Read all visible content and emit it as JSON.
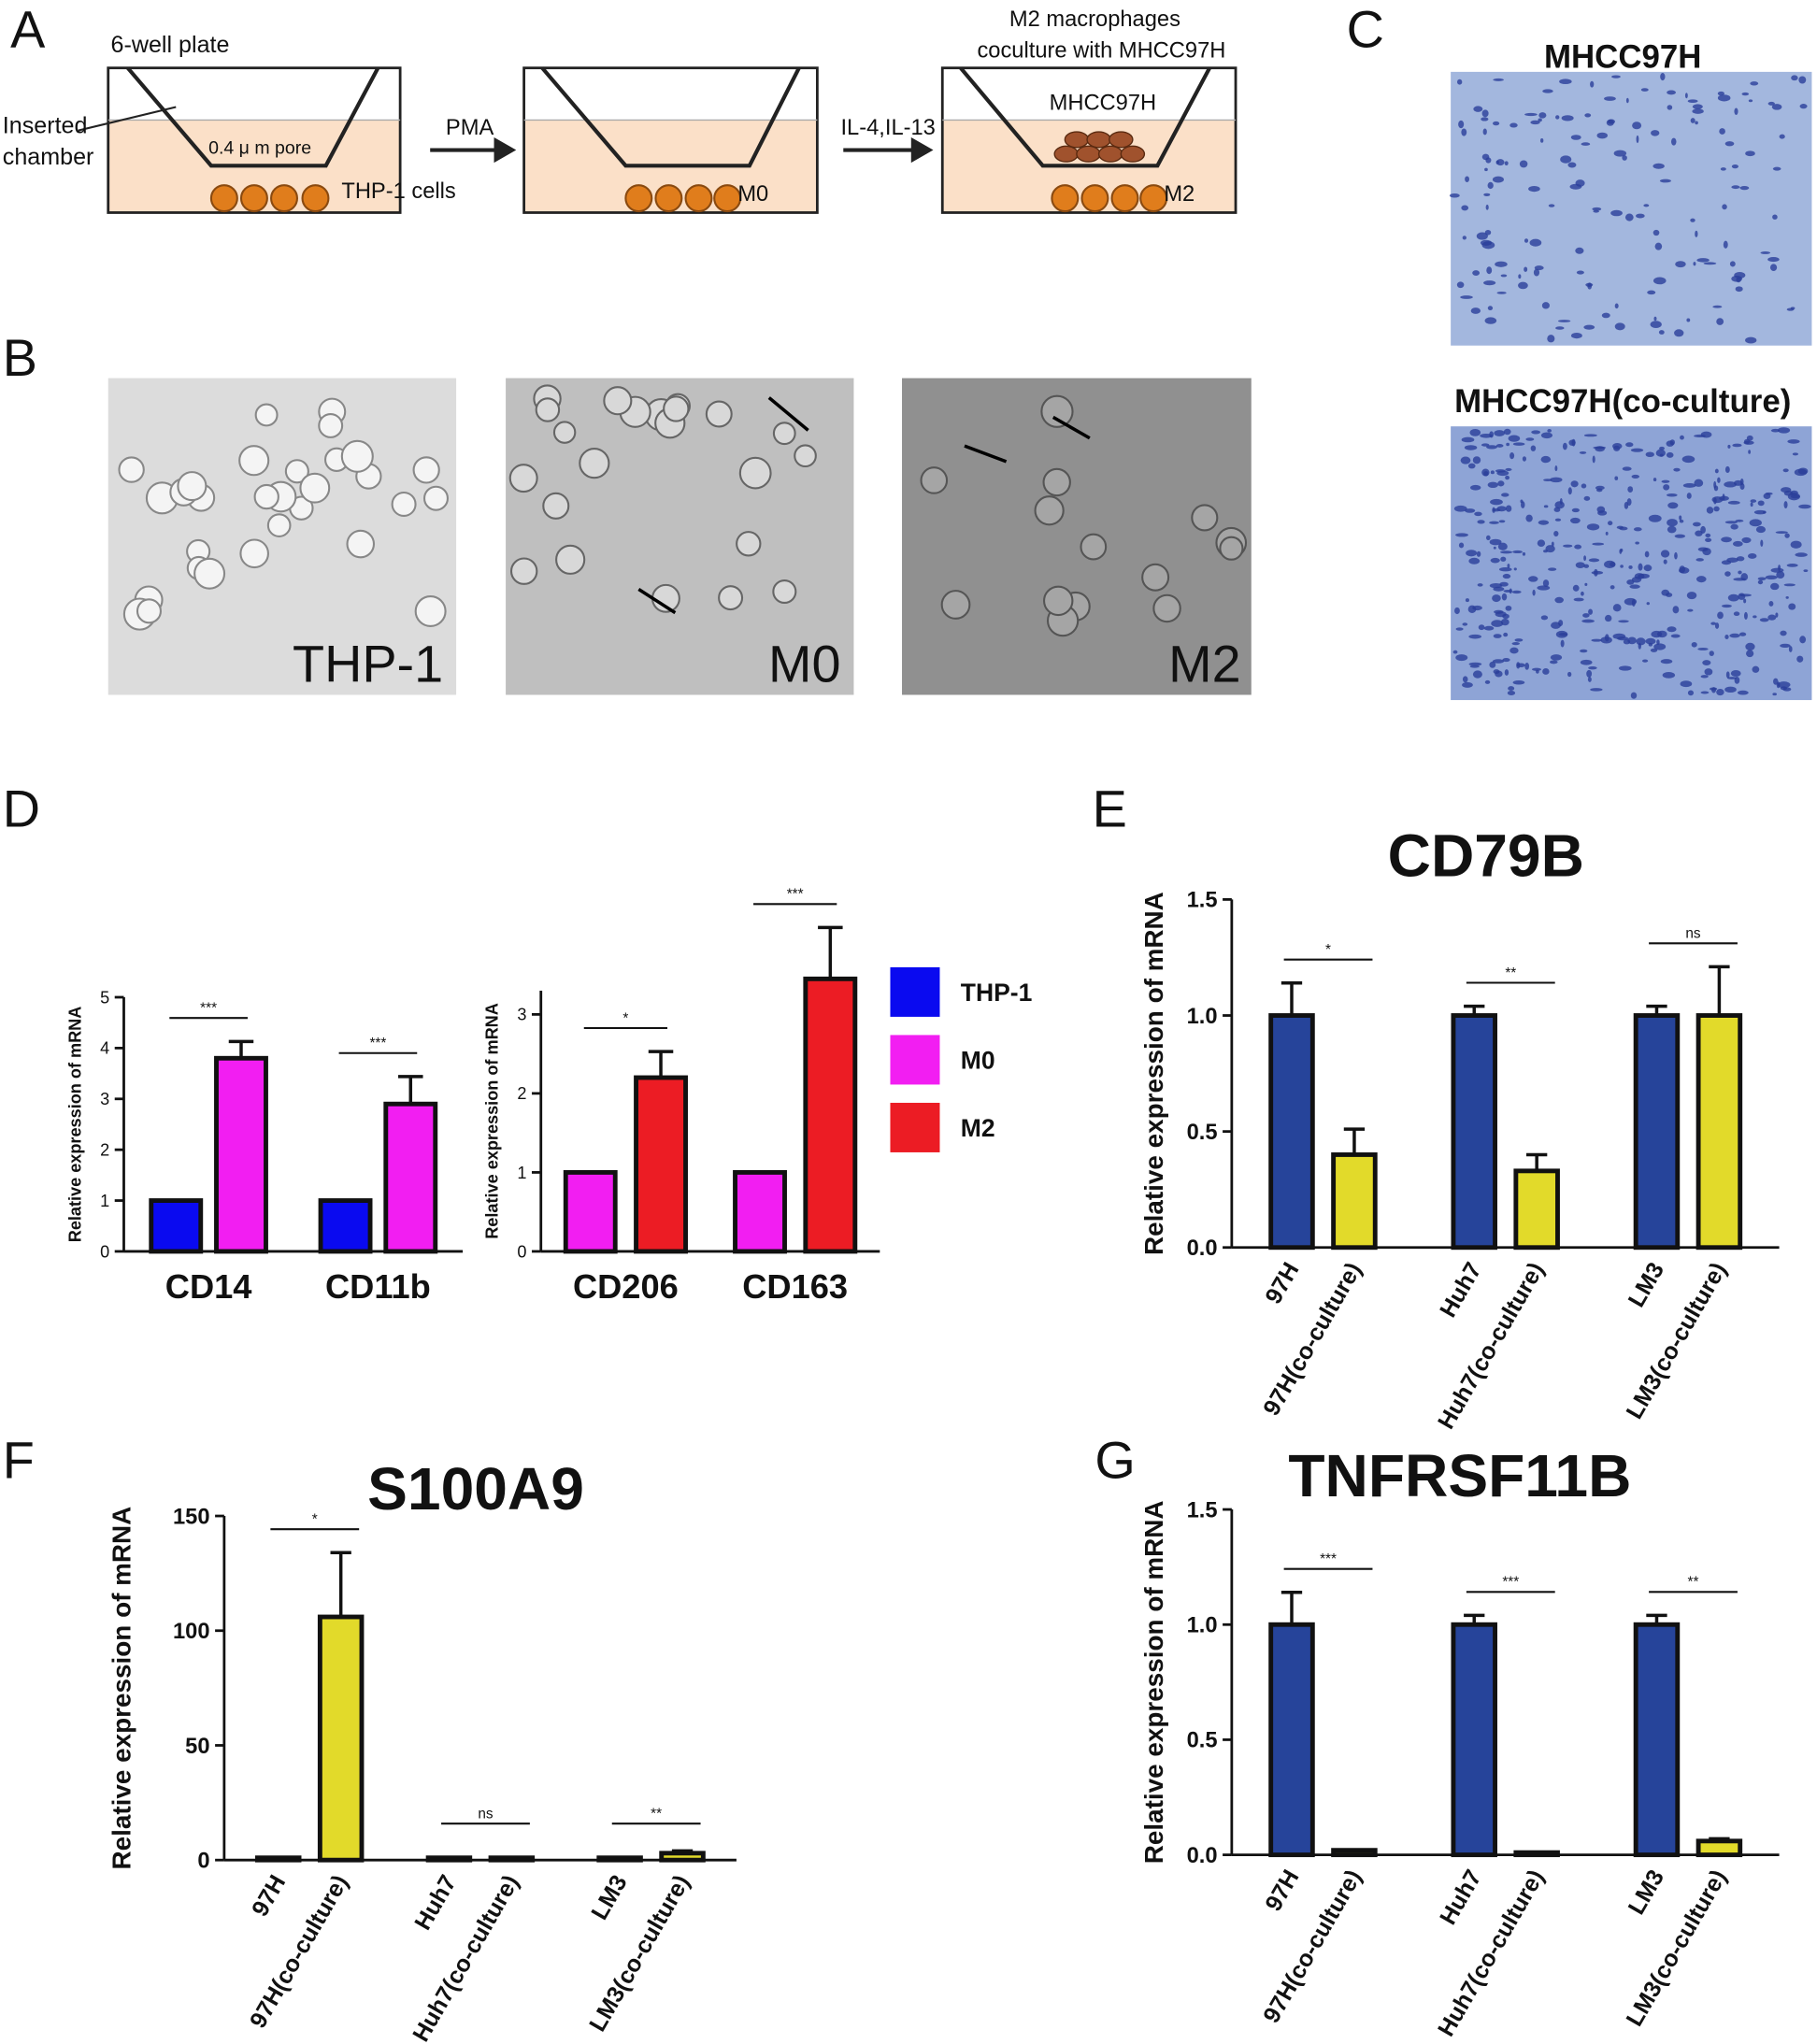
{
  "panel_labels": [
    "A",
    "B",
    "C",
    "D",
    "E",
    "F",
    "G"
  ],
  "diagram": {
    "plate_label": "6-well plate",
    "chamber_label": [
      "Inserted",
      "chamber"
    ],
    "pore_label": "0.4 μ m pore",
    "cells_label": "THP-1 cells",
    "step1": "PMA",
    "m0_label": "M0",
    "step2": "IL-4,IL-13",
    "coculture_title": [
      "M2 macrophages",
      "coculture with MHCC97H"
    ],
    "tumor_label": "MHCC97H",
    "m2_label": "M2"
  },
  "micrographs": {
    "b_labels": [
      "THP-1",
      "M0",
      "M2"
    ],
    "c_labels": [
      "MHCC97H",
      "MHCC97H(co-culture)"
    ]
  },
  "chart_data": [
    {
      "type": "bar",
      "y_label": "Relative expression of mRNA",
      "categories": [
        "CD14",
        "CD11b"
      ],
      "series": [
        {
          "name": "THP-1",
          "color": "#0a0af0",
          "values": [
            1,
            1
          ],
          "errors": [
            0,
            0
          ]
        },
        {
          "name": "M0",
          "color": "#f21ef2",
          "values": [
            3.8,
            2.9
          ],
          "errors": [
            0.33,
            0.54
          ]
        }
      ],
      "significance": [
        "***",
        "***"
      ],
      "ylim": [
        0,
        5
      ],
      "yticks": [
        0,
        1,
        2,
        3,
        4,
        5
      ]
    },
    {
      "type": "bar",
      "y_label": "Relative expression of mRNA",
      "categories": [
        "CD206",
        "CD163"
      ],
      "series": [
        {
          "name": "M0",
          "color": "#f21ef2",
          "values": [
            1,
            1
          ],
          "errors": [
            0,
            0
          ]
        },
        {
          "name": "M2",
          "color": "#ec1c24",
          "values": [
            2.2,
            3.45
          ],
          "errors": [
            0.33,
            0.65
          ]
        }
      ],
      "significance": [
        "*",
        "***"
      ],
      "ylim": [
        0,
        3.3
      ],
      "yticks": [
        0,
        1,
        2,
        3
      ]
    },
    {
      "type": "bar",
      "title": "CD79B",
      "y_label": "Relative expression of mRNA",
      "categories": [
        "97H",
        "97H(co-culture)",
        "Huh7",
        "Huh7(co-culture)",
        "LM3",
        "LM3(co-culture)"
      ],
      "values": [
        1.0,
        0.4,
        1.0,
        0.33,
        1.0,
        1.0
      ],
      "errors": [
        0.14,
        0.11,
        0.04,
        0.07,
        0.04,
        0.21
      ],
      "colors": [
        "#26449a",
        "#e2da2a",
        "#26449a",
        "#e2da2a",
        "#26449a",
        "#e2da2a"
      ],
      "significance": [
        "*",
        "**",
        "ns"
      ],
      "ylim": [
        0,
        1.5
      ],
      "yticks": [
        {
          "value": 0,
          "label": "0.0"
        },
        {
          "value": 0.5,
          "label": "0.5"
        },
        {
          "value": 1,
          "label": "1.0"
        },
        {
          "value": 1.5,
          "label": "1.5"
        }
      ]
    },
    {
      "type": "bar",
      "title": "S100A9",
      "y_label": "Relative expression of mRNA",
      "categories": [
        "97H",
        "97H(co-culture)",
        "Huh7",
        "Huh7(co-culture)",
        "LM3",
        "LM3(co-culture)"
      ],
      "values": [
        1,
        106,
        1,
        1,
        1,
        3
      ],
      "errors": [
        0,
        28,
        0,
        0,
        0,
        1
      ],
      "colors": [
        "#26449a",
        "#e2da2a",
        "#26449a",
        "#e2da2a",
        "#26449a",
        "#e2da2a"
      ],
      "significance": [
        "*",
        "ns",
        "**"
      ],
      "ylim": [
        0,
        150
      ],
      "yticks": [
        0,
        50,
        100,
        150
      ]
    },
    {
      "type": "bar",
      "title": "TNFRSF11B",
      "y_label": "Relative expression of mRNA",
      "categories": [
        "97H",
        "97H(co-culture)",
        "Huh7",
        "Huh7(co-culture)",
        "LM3",
        "LM3(co-culture)"
      ],
      "values": [
        1.0,
        0.02,
        1.0,
        0.01,
        1.0,
        0.06
      ],
      "errors": [
        0.14,
        0,
        0.04,
        0,
        0.04,
        0.01
      ],
      "colors": [
        "#26449a",
        "#e2da2a",
        "#26449a",
        "#e2da2a",
        "#26449a",
        "#e2da2a"
      ],
      "significance": [
        "***",
        "***",
        "**"
      ],
      "ylim": [
        0,
        1.5
      ],
      "yticks": [
        {
          "value": 0,
          "label": "0.0"
        },
        {
          "value": 0.5,
          "label": "0.5"
        },
        {
          "value": 1,
          "label": "1.0"
        },
        {
          "value": 1.5,
          "label": "1.5"
        }
      ]
    }
  ]
}
